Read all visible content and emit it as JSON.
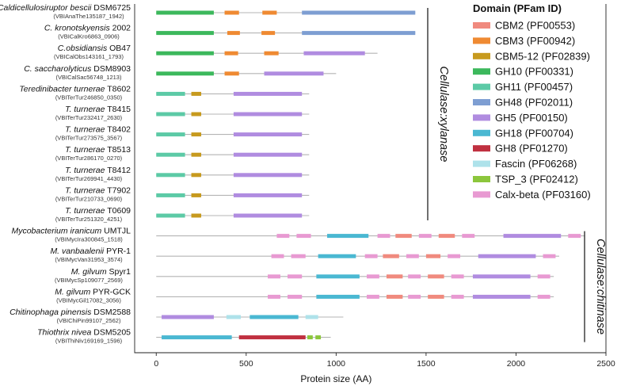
{
  "chart_data": {
    "type": "domain-architecture",
    "xlabel": "Protein size (AA)",
    "xlim": [
      -120,
      2500
    ],
    "xticks": [
      0,
      500,
      1000,
      1500,
      2000,
      2500
    ],
    "legend": {
      "title": "Domain (PFam ID)",
      "position": "top-right",
      "items": [
        {
          "key": "CBM2",
          "label": "CBM2 (PF00553)",
          "color": "#f08a7e"
        },
        {
          "key": "CBM3",
          "label": "CBM3 (PF00942)",
          "color": "#ef8a32"
        },
        {
          "key": "CBM5_12",
          "label": "CBM5-12 (PF02839)",
          "color": "#c79a1e"
        },
        {
          "key": "GH10",
          "label": "GH10 (PF00331)",
          "color": "#3cb85c"
        },
        {
          "key": "GH11",
          "label": "GH11 (PF00457)",
          "color": "#5ccaa6"
        },
        {
          "key": "GH48",
          "label": "GH48 (PF02011)",
          "color": "#7e9ed2"
        },
        {
          "key": "GH5",
          "label": "GH5 (PF00150)",
          "color": "#b08ce0"
        },
        {
          "key": "GH18",
          "label": "GH18 (PF00704)",
          "color": "#4ab8d2"
        },
        {
          "key": "GH8",
          "label": "GH8 (PF01270)",
          "color": "#c03040"
        },
        {
          "key": "Fascin",
          "label": "Fascin (PF06268)",
          "color": "#aee2ea"
        },
        {
          "key": "TSP_3",
          "label": "TSP_3 (PF02412)",
          "color": "#8cc63c"
        },
        {
          "key": "Calx",
          "label": "Calx-beta (PF03160)",
          "color": "#e89ad2"
        }
      ]
    },
    "groups": [
      {
        "label": "Cellulase:xylanase",
        "from": 0,
        "to": 10
      },
      {
        "label": "Cellulase:chitinase",
        "from": 11,
        "to": 16
      }
    ],
    "proteins": [
      {
        "name_italic": "Caldicellulosiruptor bescii",
        "name_rest": " DSM6725",
        "id": "(VBIAnaThe135187_1942)",
        "length": 1440,
        "domains": [
          [
            "GH10",
            0,
            320
          ],
          [
            "CBM3",
            380,
            460
          ],
          [
            "CBM3",
            590,
            670
          ],
          [
            "GH48",
            810,
            1440
          ]
        ]
      },
      {
        "name_italic": "C. kronotskyensis",
        "name_rest": " 2002",
        "id": "(VBICalKro6863_0906)",
        "length": 1440,
        "domains": [
          [
            "GH10",
            0,
            320
          ],
          [
            "CBM3",
            395,
            465
          ],
          [
            "CBM3",
            585,
            660
          ],
          [
            "GH48",
            810,
            1440
          ]
        ]
      },
      {
        "name_italic": "C.obsidiansis",
        "name_rest": " OB47",
        "id": "(VBICalObs143161_1793)",
        "length": 1230,
        "domains": [
          [
            "GH10",
            0,
            320
          ],
          [
            "CBM3",
            380,
            455
          ],
          [
            "CBM3",
            600,
            680
          ],
          [
            "GH5",
            820,
            1160
          ]
        ]
      },
      {
        "name_italic": "C. saccharolyticus",
        "name_rest": " DSM8903",
        "id": "(VBICalSac56748_1213)",
        "length": 1000,
        "domains": [
          [
            "GH10",
            0,
            320
          ],
          [
            "CBM3",
            380,
            460
          ],
          [
            "GH5",
            600,
            930
          ]
        ]
      },
      {
        "name_italic": "Teredinibacter turnerae",
        "name_rest": " T8602",
        "id": "(VBITerTur246850_0350)",
        "length": 850,
        "domains": [
          [
            "GH11",
            0,
            160
          ],
          [
            "CBM5_12",
            195,
            250
          ],
          [
            "GH5",
            430,
            810
          ]
        ]
      },
      {
        "name_italic": "T. turnerae",
        "name_rest": " T8415",
        "id": "(VBITerTur232417_2630)",
        "length": 850,
        "domains": [
          [
            "GH11",
            0,
            160
          ],
          [
            "CBM5_12",
            195,
            250
          ],
          [
            "GH5",
            430,
            810
          ]
        ]
      },
      {
        "name_italic": "T. turnerae",
        "name_rest": " T8402",
        "id": "(VBITerTur273575_3567)",
        "length": 850,
        "domains": [
          [
            "GH11",
            0,
            160
          ],
          [
            "CBM5_12",
            195,
            250
          ],
          [
            "GH5",
            430,
            810
          ]
        ]
      },
      {
        "name_italic": "T. turnerae",
        "name_rest": " T8513",
        "id": "(VBITerTur286170_0270)",
        "length": 850,
        "domains": [
          [
            "GH11",
            0,
            160
          ],
          [
            "CBM5_12",
            195,
            250
          ],
          [
            "GH5",
            430,
            810
          ]
        ]
      },
      {
        "name_italic": "T. turnerae",
        "name_rest": " T8412",
        "id": "(VBITerTur269941_4430)",
        "length": 850,
        "domains": [
          [
            "GH11",
            0,
            160
          ],
          [
            "CBM5_12",
            195,
            250
          ],
          [
            "GH5",
            430,
            810
          ]
        ]
      },
      {
        "name_italic": "T. turnerae",
        "name_rest": " T7902",
        "id": "(VBITerTur210733_0690)",
        "length": 850,
        "domains": [
          [
            "GH11",
            0,
            160
          ],
          [
            "CBM5_12",
            195,
            250
          ],
          [
            "GH5",
            430,
            810
          ]
        ]
      },
      {
        "name_italic": "T. turnerae",
        "name_rest": " T0609",
        "id": "(VBITerTur251320_4251)",
        "length": 850,
        "domains": [
          [
            "GH11",
            0,
            160
          ],
          [
            "CBM5_12",
            195,
            250
          ],
          [
            "GH5",
            430,
            810
          ]
        ]
      },
      {
        "name_italic": "Mycobacterium iranicum",
        "name_rest": " UMTJL",
        "id": "(VBIMycIra300845_1518)",
        "length": 2380,
        "domains": [
          [
            "Calx",
            670,
            740
          ],
          [
            "Calx",
            780,
            860
          ],
          [
            "GH18",
            950,
            1180
          ],
          [
            "Calx",
            1230,
            1300
          ],
          [
            "CBM2",
            1330,
            1420
          ],
          [
            "Calx",
            1460,
            1530
          ],
          [
            "CBM2",
            1570,
            1660
          ],
          [
            "Calx",
            1700,
            1770
          ],
          [
            "GH5",
            1930,
            2250
          ],
          [
            "Calx",
            2290,
            2360
          ]
        ]
      },
      {
        "name_italic": "M. vanbaalenii",
        "name_rest": " PYR-1",
        "id": "(VBIMycVan31953_3574)",
        "length": 2240,
        "domains": [
          [
            "Calx",
            640,
            710
          ],
          [
            "Calx",
            750,
            830
          ],
          [
            "GH18",
            900,
            1110
          ],
          [
            "Calx",
            1160,
            1230
          ],
          [
            "CBM2",
            1260,
            1350
          ],
          [
            "Calx",
            1390,
            1460
          ],
          [
            "CBM2",
            1500,
            1580
          ],
          [
            "Calx",
            1620,
            1690
          ],
          [
            "GH5",
            1790,
            2110
          ],
          [
            "Calx",
            2150,
            2220
          ]
        ]
      },
      {
        "name_italic": "M. gilvum",
        "name_rest": " Spyr1",
        "id": "(VBIMycSp109077_2569)",
        "length": 2210,
        "domains": [
          [
            "Calx",
            620,
            690
          ],
          [
            "Calx",
            730,
            810
          ],
          [
            "GH18",
            890,
            1130
          ],
          [
            "Calx",
            1170,
            1240
          ],
          [
            "CBM2",
            1280,
            1370
          ],
          [
            "Calx",
            1400,
            1470
          ],
          [
            "CBM2",
            1510,
            1600
          ],
          [
            "Calx",
            1640,
            1710
          ],
          [
            "GH5",
            1760,
            2080
          ],
          [
            "Calx",
            2120,
            2190
          ]
        ]
      },
      {
        "name_italic": "M. gilvum",
        "name_rest": " PYR-GCK",
        "id": "(VBIMycGil17082_3056)",
        "length": 2210,
        "domains": [
          [
            "Calx",
            620,
            690
          ],
          [
            "Calx",
            730,
            810
          ],
          [
            "GH18",
            890,
            1130
          ],
          [
            "Calx",
            1170,
            1240
          ],
          [
            "CBM2",
            1280,
            1370
          ],
          [
            "Calx",
            1400,
            1470
          ],
          [
            "CBM2",
            1510,
            1600
          ],
          [
            "Calx",
            1640,
            1710
          ],
          [
            "GH5",
            1760,
            2080
          ],
          [
            "Calx",
            2120,
            2190
          ]
        ]
      },
      {
        "name_italic": "Chitinophaga pinensis",
        "name_rest": " DSM2588",
        "id": "(VBIChiPin99107_2562)",
        "length": 1040,
        "domains": [
          [
            "GH5",
            30,
            320
          ],
          [
            "Fascin",
            390,
            470
          ],
          [
            "GH18",
            520,
            790
          ],
          [
            "Fascin",
            830,
            900
          ]
        ]
      },
      {
        "name_italic": "Thiothrix nivea",
        "name_rest": " DSM5205",
        "id": "(VBIThiNiv169169_1596)",
        "length": 970,
        "domains": [
          [
            "GH18",
            30,
            420
          ],
          [
            "GH8",
            460,
            830
          ],
          [
            "TSP_3",
            840,
            870
          ],
          [
            "TSP_3",
            885,
            915
          ]
        ]
      }
    ]
  }
}
